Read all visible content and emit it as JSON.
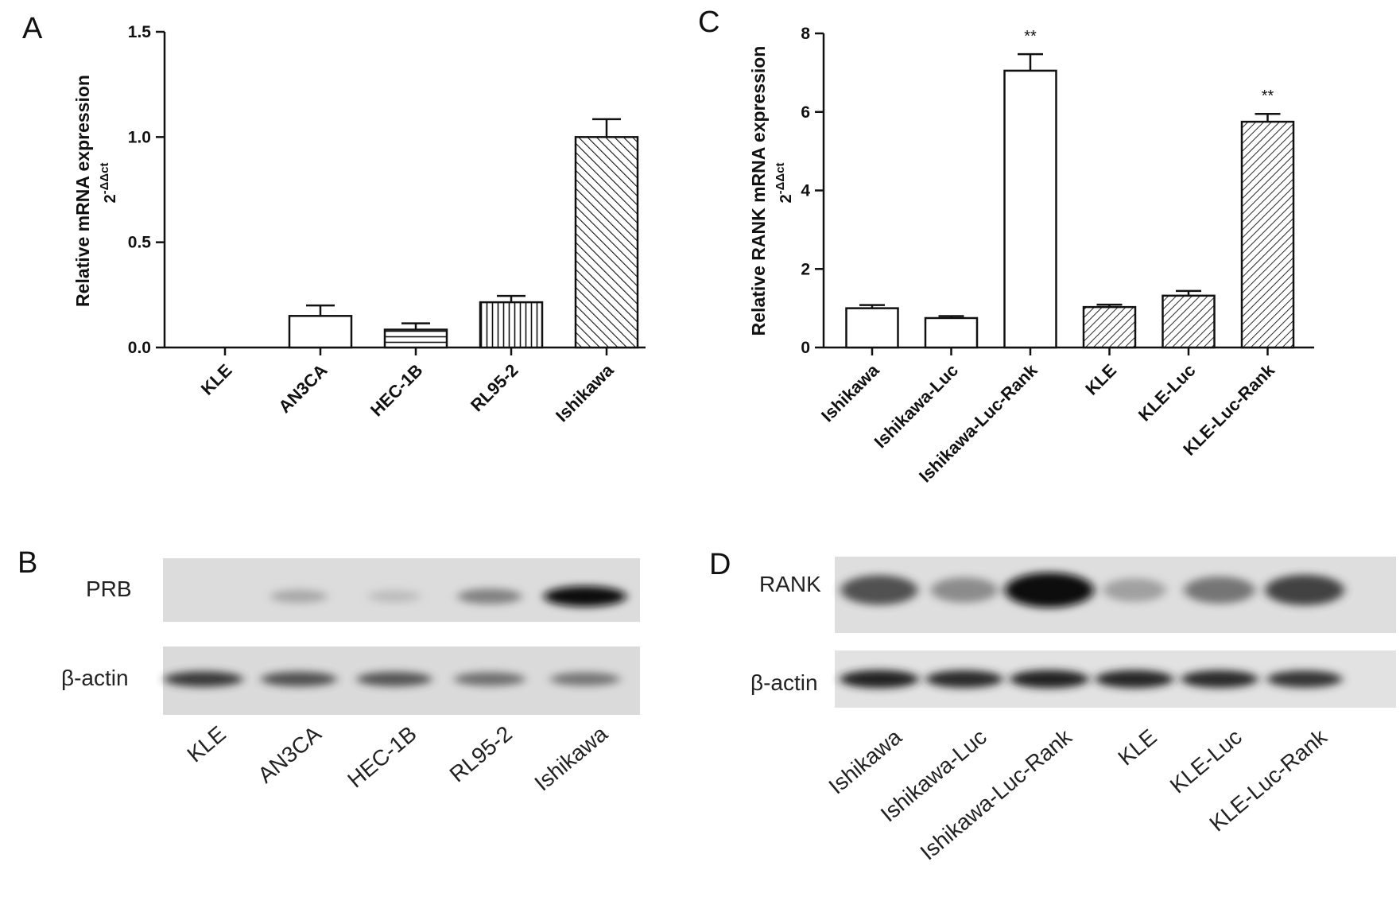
{
  "chart_data": [
    {
      "panel": "A",
      "type": "bar",
      "ylabel": "Relative mRNA expression",
      "ylabel_sub": "2-ΔΔct",
      "categories": [
        "KLE",
        "AN3CA",
        "HEC-1B",
        "RL95-2",
        "Ishikawa"
      ],
      "values": [
        0.0,
        0.15,
        0.085,
        0.215,
        1.0
      ],
      "errors": [
        0.0,
        0.05,
        0.03,
        0.03,
        0.085
      ],
      "patterns": [
        "none",
        "none",
        "horizontal",
        "vertical",
        "diagonal"
      ],
      "ylim": [
        0,
        1.5
      ],
      "yticks": [
        "0.0",
        "0.5",
        "1.0",
        "1.5"
      ],
      "grid": false
    },
    {
      "panel": "C",
      "type": "bar",
      "ylabel": "Relative RANK mRNA expression",
      "ylabel_sub": "2-ΔΔct",
      "categories": [
        "Ishikawa",
        "Ishikawa-Luc",
        "Ishikawa-Luc-Rank",
        "KLE",
        "KLE-Luc",
        "KLE-Luc-Rank"
      ],
      "values": [
        1.0,
        0.75,
        7.05,
        1.03,
        1.32,
        5.75
      ],
      "errors": [
        0.08,
        0.05,
        0.42,
        0.06,
        0.12,
        0.2
      ],
      "patterns": [
        "none",
        "none",
        "none",
        "diagonal",
        "diagonal",
        "diagonal"
      ],
      "significance": [
        "",
        "",
        "**",
        "",
        "",
        "**"
      ],
      "ylim": [
        0,
        8
      ],
      "yticks": [
        "0",
        "2",
        "4",
        "6",
        "8"
      ],
      "grid": false
    }
  ],
  "blots": [
    {
      "panel": "B",
      "rows": [
        {
          "label": "PRB",
          "intensities": [
            0.0,
            0.3,
            0.18,
            0.5,
            1.0
          ]
        },
        {
          "label": "β-actin",
          "intensities": [
            0.78,
            0.7,
            0.68,
            0.58,
            0.55
          ]
        }
      ],
      "lanes": [
        "KLE",
        "AN3CA",
        "HEC-1B",
        "RL95-2",
        "Ishikawa"
      ]
    },
    {
      "panel": "D",
      "rows": [
        {
          "label": "RANK",
          "intensities": [
            0.7,
            0.45,
            1.0,
            0.35,
            0.55,
            0.75
          ]
        },
        {
          "label": "β-actin",
          "intensities": [
            0.9,
            0.85,
            0.9,
            0.88,
            0.85,
            0.8
          ]
        }
      ],
      "lanes": [
        "Ishikawa",
        "Ishikawa-Luc",
        "Ishikawa-Luc-Rank",
        "KLE",
        "KLE-Luc",
        "KLE-Luc-Rank"
      ]
    }
  ],
  "colors": {
    "ink": "#111111",
    "bar_fill": "#ffffff",
    "blot_bg": "#dcdcdc"
  }
}
